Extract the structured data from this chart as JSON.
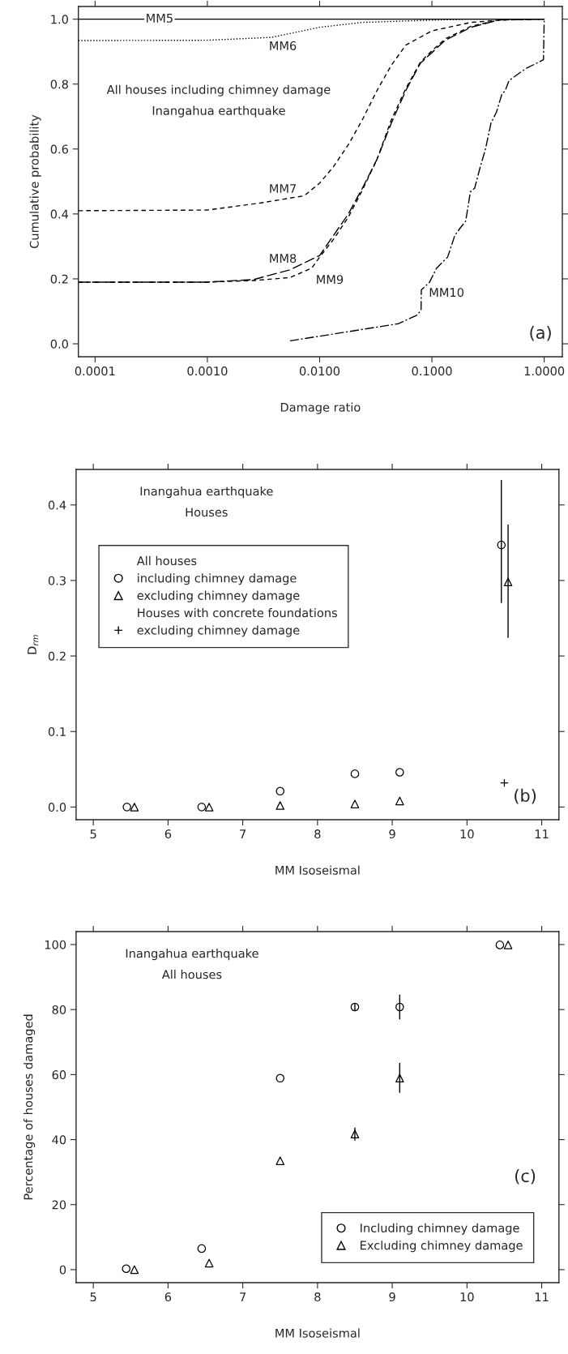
{
  "chart_data": [
    {
      "type": "line",
      "xlabel": "Damage ratio",
      "ylabel": "Cumulative probability",
      "log": "x",
      "xlim": [
        7.1e-05,
        1.45
      ],
      "ylim": [
        -0.04,
        1.039
      ],
      "xticks": [
        {
          "value": 0.0001,
          "label": "0.0001"
        },
        {
          "value": 0.001,
          "label": "0.0010"
        },
        {
          "value": 0.01,
          "label": "0.0100"
        },
        {
          "value": 0.1,
          "label": "0.1000"
        },
        {
          "value": 1,
          "label": "1.0000"
        }
      ],
      "yticks": [
        {
          "value": 0,
          "label": "0.0"
        },
        {
          "value": 0.2,
          "label": "0.2"
        },
        {
          "value": 0.4,
          "label": "0.4"
        },
        {
          "value": 0.6,
          "label": "0.6"
        },
        {
          "value": 0.8,
          "label": "0.8"
        },
        {
          "value": 1,
          "label": "1.0"
        }
      ],
      "grid": false,
      "legend": false,
      "annotations": [
        "All houses including chimney damage",
        "Inangahua earthquake",
        "(a)"
      ],
      "series": [
        {
          "name": "MM5",
          "color": "#000000",
          "line_style": "solid",
          "x": [
            7.1e-05,
            1.0
          ],
          "values": [
            1.0,
            1.0
          ]
        },
        {
          "name": "MM6",
          "color": "#000000",
          "line_style": "dotted",
          "x": [
            7.1e-05,
            0.001,
            0.00375,
            0.01,
            0.024,
            0.1,
            0.2,
            1.0
          ],
          "values": [
            0.934,
            0.935,
            0.944,
            0.975,
            0.99,
            0.997,
            1.0,
            1.0
          ]
        },
        {
          "name": "MM7",
          "color": "#000000",
          "line_style": "dashed",
          "x": [
            7.1e-05,
            0.001,
            0.003,
            0.0073,
            0.01,
            0.0133,
            0.018,
            0.024,
            0.0324,
            0.0435,
            0.0585,
            0.1,
            0.223,
            0.4,
            1.0
          ],
          "values": [
            0.41,
            0.412,
            0.434,
            0.456,
            0.495,
            0.546,
            0.613,
            0.69,
            0.78,
            0.858,
            0.92,
            0.964,
            0.99,
            0.997,
            1.0
          ]
        },
        {
          "name": "MM8",
          "color": "#000000",
          "line_style": "longdash",
          "x": [
            7.1e-05,
            0.001,
            0.0026,
            0.00544,
            0.01,
            0.0133,
            0.018,
            0.024,
            0.0324,
            0.0435,
            0.0585,
            0.0788,
            0.1,
            0.1326,
            0.223,
            0.4,
            1.0
          ],
          "values": [
            0.19,
            0.19,
            0.198,
            0.228,
            0.272,
            0.334,
            0.4,
            0.479,
            0.568,
            0.68,
            0.78,
            0.864,
            0.897,
            0.936,
            0.975,
            0.998,
            1.0
          ]
        },
        {
          "name": "MM9",
          "color": "#000000",
          "line_style": "dashed",
          "x": [
            7.1e-05,
            0.001,
            0.0026,
            0.00544,
            0.0085,
            0.01,
            0.0133,
            0.018,
            0.024,
            0.0324,
            0.0435,
            0.0585,
            0.0788,
            0.1,
            0.1326,
            0.223,
            0.4,
            0.6
          ],
          "values": [
            0.19,
            0.19,
            0.195,
            0.204,
            0.233,
            0.267,
            0.322,
            0.39,
            0.473,
            0.568,
            0.69,
            0.786,
            0.867,
            0.903,
            0.94,
            0.978,
            0.998,
            1.0
          ]
        },
        {
          "name": "MM10",
          "color": "#000000",
          "line_style": "dashdot",
          "x": [
            0.00544,
            0.0505,
            0.0732,
            0.08,
            0.0805,
            0.095,
            0.11,
            0.138,
            0.16,
            0.178,
            0.2,
            0.22,
            0.24,
            0.27,
            0.3,
            0.336,
            0.375,
            0.42,
            0.45,
            0.486,
            0.68,
            0.985,
            1.0
          ],
          "values": [
            0.009,
            0.062,
            0.088,
            0.103,
            0.166,
            0.189,
            0.233,
            0.267,
            0.334,
            0.356,
            0.378,
            0.468,
            0.479,
            0.546,
            0.6,
            0.68,
            0.713,
            0.769,
            0.78,
            0.811,
            0.847,
            0.875,
            1.0
          ]
        }
      ]
    },
    {
      "type": "scatter",
      "xlabel": "MM Isoseismal",
      "ylabel": "D$_{rm}$",
      "xlim": [
        4.77,
        11.23
      ],
      "ylim": [
        -0.0168,
        0.447
      ],
      "xticks": [
        5,
        6,
        7,
        8,
        9,
        10,
        11
      ],
      "yticks": [
        {
          "value": 0,
          "label": "0.0"
        },
        {
          "value": 0.1,
          "label": "0.1"
        },
        {
          "value": 0.2,
          "label": "0.2"
        },
        {
          "value": 0.3,
          "label": "0.3"
        },
        {
          "value": 0.4,
          "label": "0.4"
        }
      ],
      "grid": false,
      "legend": "top left",
      "annotations": [
        "Inangahua earthquake",
        "Houses",
        "(b)",
        "All houses",
        "Houses with concrete foundations"
      ],
      "series": [
        {
          "name": "including chimney damage",
          "color": "#000000",
          "marker": "circle",
          "x": [
            5.45,
            6.45,
            7.5,
            8.5,
            9.1,
            10.46
          ],
          "values": [
            0.0,
            0.0,
            0.021,
            0.044,
            0.046,
            0.347
          ],
          "errors": [
            null,
            null,
            null,
            null,
            null,
            [
              0.27,
              0.433
            ]
          ]
        },
        {
          "name": "excluding chimney damage",
          "color": "#000000",
          "marker": "triangle",
          "x": [
            5.55,
            6.55,
            7.5,
            8.5,
            9.1,
            10.55
          ],
          "values": [
            0.0,
            0.0,
            0.002,
            0.004,
            0.008,
            0.298
          ],
          "errors": [
            null,
            null,
            null,
            null,
            null,
            [
              0.224,
              0.374
            ]
          ]
        },
        {
          "name": "excluding chimney damage",
          "color": "#000000",
          "marker": "cross",
          "x": [
            10.5
          ],
          "values": [
            0.032
          ]
        }
      ]
    },
    {
      "type": "scatter",
      "xlabel": "MM Isoseismal",
      "ylabel": "Percentage of houses damaged",
      "xlim": [
        4.77,
        11.23
      ],
      "ylim": [
        -4.0,
        104.0
      ],
      "xticks": [
        5,
        6,
        7,
        8,
        9,
        10,
        11
      ],
      "yticks": [
        0,
        20,
        40,
        60,
        80,
        100
      ],
      "grid": false,
      "legend": "bottom right",
      "annotations": [
        "Inangahua earthquake",
        "All houses",
        "(c)"
      ],
      "series": [
        {
          "name": "Including chimney damage",
          "color": "#000000",
          "marker": "circle",
          "x": [
            5.44,
            6.45,
            7.5,
            8.5,
            9.1,
            10.44
          ],
          "values": [
            0.3,
            6.5,
            58.9,
            80.8,
            80.8,
            99.9
          ],
          "errors": [
            null,
            null,
            null,
            [
              79.6,
              82.0
            ],
            [
              77.0,
              84.6
            ],
            null
          ]
        },
        {
          "name": "Excluding chimney damage",
          "color": "#000000",
          "marker": "triangle",
          "x": [
            5.55,
            6.55,
            7.5,
            8.5,
            9.1,
            10.55
          ],
          "values": [
            0.0,
            2.0,
            33.5,
            41.7,
            58.9,
            99.9
          ],
          "errors": [
            null,
            null,
            null,
            [
              39.7,
              43.7
            ],
            [
              54.4,
              63.6
            ],
            null
          ]
        }
      ]
    }
  ]
}
